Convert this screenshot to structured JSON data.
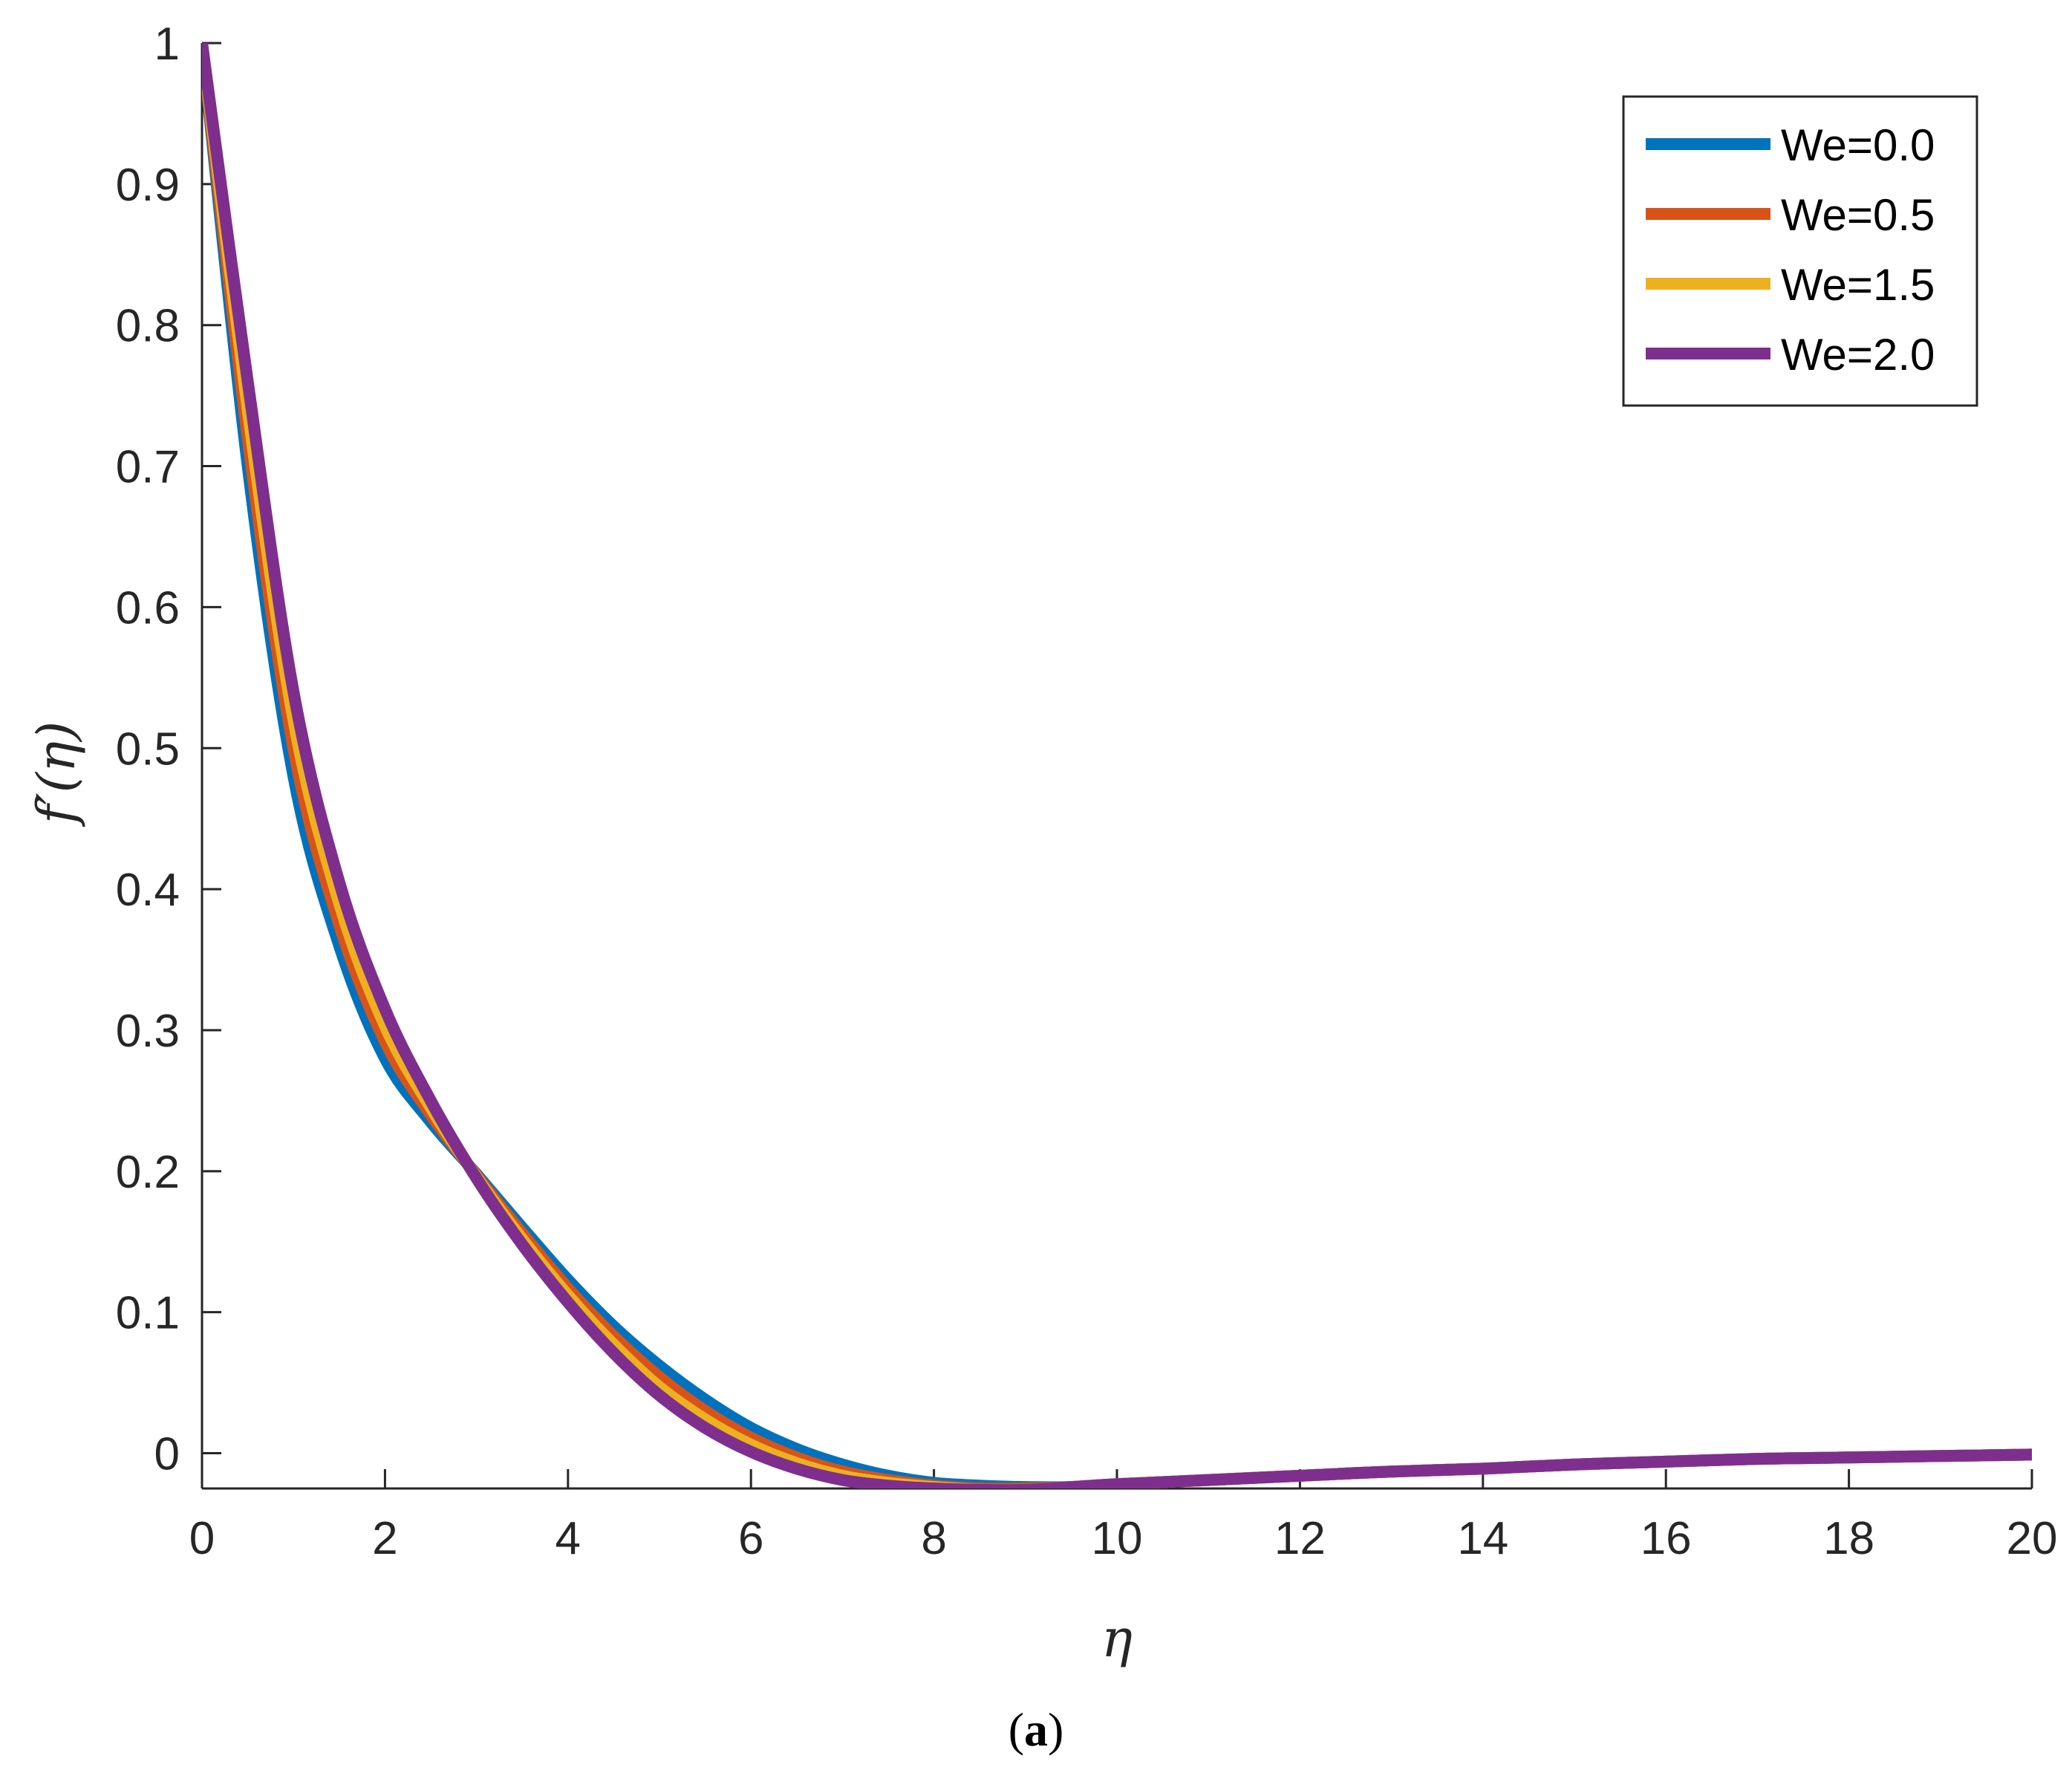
{
  "chart_data": {
    "type": "line",
    "title": "",
    "xlabel": "η",
    "ylabel": "f′(η)",
    "caption": {
      "open": "(",
      "letter": "a",
      "close": ")"
    },
    "xlim": [
      0,
      20
    ],
    "ylim": [
      -0.025,
      1
    ],
    "xticks": [
      0,
      2,
      4,
      6,
      8,
      10,
      12,
      14,
      16,
      18,
      20
    ],
    "xtick_labels": [
      "0",
      "2",
      "4",
      "6",
      "8",
      "10",
      "12",
      "14",
      "16",
      "18",
      "20"
    ],
    "yticks": [
      0,
      0.1,
      0.2,
      0.3,
      0.4,
      0.5,
      0.6,
      0.7,
      0.8,
      0.9,
      1
    ],
    "ytick_labels": [
      "0",
      "0.1",
      "0.2",
      "0.3",
      "0.4",
      "0.5",
      "0.6",
      "0.7",
      "0.8",
      "0.9",
      "1"
    ],
    "grid": false,
    "legend_position": "top-right",
    "x": [
      0,
      0.5,
      1,
      1.5,
      2,
      2.5,
      3,
      3.5,
      4,
      4.5,
      5,
      5.5,
      6,
      6.5,
      7,
      7.5,
      8,
      8.5,
      9,
      9.5,
      10,
      11,
      12,
      13,
      14,
      15,
      16,
      17,
      18,
      19,
      20
    ],
    "series": [
      {
        "name": "We=0.0",
        "color": "#0072BD",
        "values": [
          1,
          0.7,
          0.48,
          0.36,
          0.28,
          0.235,
          0.198,
          0.16,
          0.123,
          0.09,
          0.062,
          0.038,
          0.018,
          0.003,
          -0.008,
          -0.016,
          -0.021,
          -0.023,
          -0.024,
          -0.024,
          -0.022,
          -0.019,
          -0.016,
          -0.013,
          -0.011,
          -0.008,
          -0.006,
          -0.004,
          -0.003,
          -0.002,
          -0.001
        ]
      },
      {
        "name": "We=0.5",
        "color": "#D95319",
        "values": [
          1,
          0.72,
          0.5,
          0.375,
          0.292,
          0.24,
          0.197,
          0.156,
          0.117,
          0.083,
          0.054,
          0.03,
          0.011,
          -0.003,
          -0.013,
          -0.019,
          -0.023,
          -0.025,
          -0.025,
          -0.024,
          -0.022,
          -0.019,
          -0.016,
          -0.013,
          -0.011,
          -0.008,
          -0.006,
          -0.004,
          -0.003,
          -0.002,
          -0.001
        ]
      },
      {
        "name": "We=1.5",
        "color": "#EDB120",
        "values": [
          1,
          0.74,
          0.52,
          0.39,
          0.303,
          0.245,
          0.196,
          0.152,
          0.112,
          0.077,
          0.047,
          0.024,
          0.006,
          -0.007,
          -0.016,
          -0.021,
          -0.024,
          -0.026,
          -0.026,
          -0.024,
          -0.022,
          -0.019,
          -0.016,
          -0.013,
          -0.011,
          -0.008,
          -0.006,
          -0.004,
          -0.003,
          -0.002,
          -0.001
        ]
      },
      {
        "name": "We=2.0",
        "color": "#7E2F8E",
        "values": [
          1,
          0.76,
          0.54,
          0.405,
          0.315,
          0.25,
          0.195,
          0.148,
          0.107,
          0.071,
          0.041,
          0.018,
          0.001,
          -0.011,
          -0.019,
          -0.023,
          -0.025,
          -0.026,
          -0.026,
          -0.024,
          -0.022,
          -0.019,
          -0.016,
          -0.013,
          -0.011,
          -0.008,
          -0.006,
          -0.004,
          -0.003,
          -0.002,
          -0.001
        ]
      }
    ]
  }
}
